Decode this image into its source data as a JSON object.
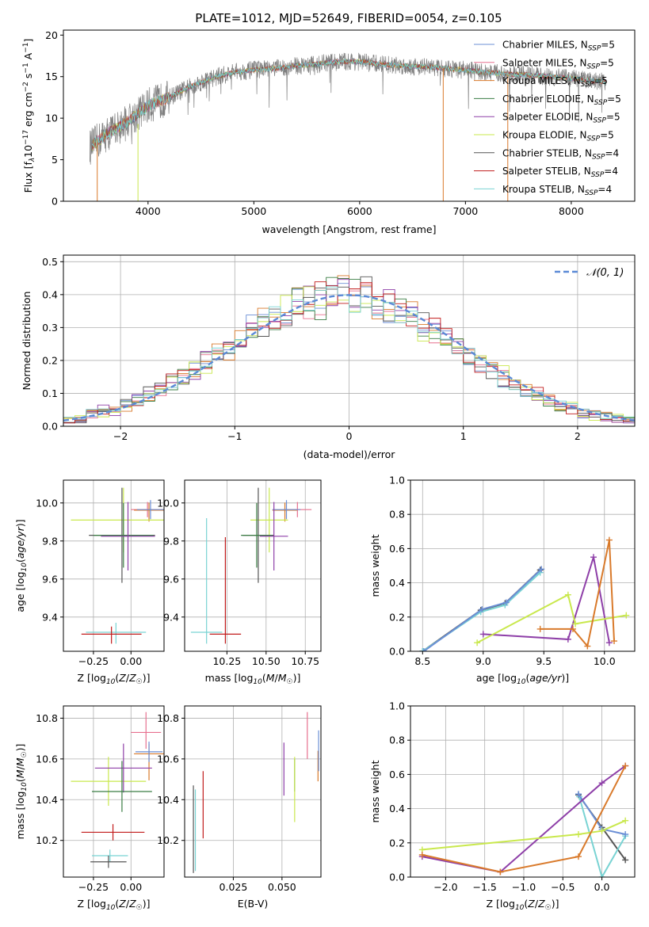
{
  "title": "PLATE=1012, MJD=52649, FIBERID=0054, z=0.105",
  "colors": {
    "chabrier_miles": "#6b8fd6",
    "salpeter_miles": "#e7708f",
    "kroupa_miles": "#d97a2b",
    "chabrier_elodie": "#3a7d44",
    "salpeter_elodie": "#8e3fa8",
    "kroupa_elodie": "#c9e84d",
    "chabrier_stelib": "#555555",
    "salpeter_stelib": "#c11b1b",
    "kroupa_stelib": "#79d3d3",
    "normal_curve": "#5b8ad6"
  },
  "chart_data": [
    {
      "id": "spectrum",
      "type": "line",
      "xlabel": "wavelength [Angstrom, rest frame]",
      "ylabel": "Flux [f_λ 10^-17 erg cm^-2 s^-1 A^-1]",
      "xlim": [
        3200,
        8600
      ],
      "ylim": [
        0,
        20.6
      ],
      "xticks": [
        4000,
        5000,
        6000,
        7000,
        8000
      ],
      "yticks": [
        0,
        5,
        10,
        15,
        20
      ],
      "grid": false,
      "legend_position": "top-right",
      "legend": [
        {
          "label": "Chabrier MILES, N",
          "sub": "SSP",
          "suffix": "=5",
          "color": "#6b8fd6"
        },
        {
          "label": "Salpeter MILES, N",
          "sub": "SSP",
          "suffix": "=5",
          "color": "#e7708f"
        },
        {
          "label": "Kroupa MILES, N",
          "sub": "SSP",
          "suffix": "=5",
          "color": "#d97a2b"
        },
        {
          "label": "Chabrier ELODIE, N",
          "sub": "SSP",
          "suffix": "=5",
          "color": "#3a7d44"
        },
        {
          "label": "Salpeter ELODIE, N",
          "sub": "SSP",
          "suffix": "=5",
          "color": "#8e3fa8"
        },
        {
          "label": "Kroupa ELODIE, N",
          "sub": "SSP",
          "suffix": "=5",
          "color": "#c9e84d"
        },
        {
          "label": "Chabrier STELIB, N",
          "sub": "SSP",
          "suffix": "=4",
          "color": "#555555"
        },
        {
          "label": "Salpeter STELIB, N",
          "sub": "SSP",
          "suffix": "=4",
          "color": "#c11b1b"
        },
        {
          "label": "Kroupa STELIB, N",
          "sub": "SSP",
          "suffix": "=4",
          "color": "#79d3d3"
        }
      ],
      "continuum": [
        [
          3450,
          6.5
        ],
        [
          3600,
          8.0
        ],
        [
          3800,
          9.5
        ],
        [
          4000,
          11.5
        ],
        [
          4200,
          12.5
        ],
        [
          4400,
          13.8
        ],
        [
          4600,
          14.8
        ],
        [
          4800,
          15.5
        ],
        [
          5000,
          15.8
        ],
        [
          5200,
          16.0
        ],
        [
          5400,
          16.3
        ],
        [
          5600,
          16.5
        ],
        [
          5800,
          16.8
        ],
        [
          6000,
          16.8
        ],
        [
          6200,
          16.5
        ],
        [
          6400,
          16.3
        ],
        [
          6600,
          16.2
        ],
        [
          6800,
          16.0
        ],
        [
          7000,
          15.8
        ],
        [
          7200,
          15.5
        ],
        [
          7400,
          15.3
        ],
        [
          7600,
          15.2
        ],
        [
          7800,
          15.0
        ],
        [
          8000,
          14.8
        ],
        [
          8200,
          14.5
        ],
        [
          8330,
          14.4
        ]
      ],
      "model_drops": [
        {
          "x": 3520,
          "y_from": 7.5,
          "y_to": 0,
          "color": "#d97a2b"
        },
        {
          "x": 3905,
          "y_from": 9.3,
          "y_to": 0,
          "color": "#c9e84d"
        },
        {
          "x": 6790,
          "y_from": 16.0,
          "y_to": 0,
          "color": "#d97a2b"
        },
        {
          "x": 7400,
          "y_from": 15.3,
          "y_to": 0,
          "color": "#d97a2b"
        }
      ]
    },
    {
      "id": "residual-histogram",
      "type": "histogram",
      "xlabel": "(data-model)/error",
      "ylabel": "Normed distribution",
      "xlim": [
        -2.5,
        2.5
      ],
      "ylim": [
        0,
        0.52
      ],
      "xticks": [
        -2,
        -1,
        0,
        1,
        2
      ],
      "yticks": [
        0.0,
        0.1,
        0.2,
        0.3,
        0.4,
        0.5
      ],
      "grid": true,
      "legend_position": "top-right",
      "legend": [
        {
          "label": "𝒩(0, 1)",
          "color": "#5b8ad6",
          "style": "dashed"
        }
      ],
      "bin_width": 0.1,
      "bin_start": -2.5
    },
    {
      "id": "age-vs-Z",
      "type": "errorbar",
      "xlabel": "Z [log10(Z/Z☉)]",
      "ylabel": "age  [log10(age/yr)]",
      "xlim": [
        -0.45,
        0.22
      ],
      "ylim": [
        9.22,
        10.12
      ],
      "xticks": [
        -0.25,
        0.0
      ],
      "xticklabels": [
        "−0.25",
        "0.00"
      ],
      "yticks": [
        9.4,
        9.6,
        9.8,
        10.0
      ],
      "grid": true,
      "points": [
        {
          "x": 0.11,
          "y": 9.965,
          "xerr": 0.11,
          "yerr": [
            0.04,
            0.04
          ],
          "color": "#e7708f"
        },
        {
          "x": 0.12,
          "y": 9.962,
          "xerr": 0.1,
          "yerr": [
            0.06,
            0.04
          ],
          "color": "#d97a2b"
        },
        {
          "x": 0.13,
          "y": 9.965,
          "xerr": 0.09,
          "yerr": [
            0.05,
            0.05
          ],
          "color": "#6b8fd6"
        },
        {
          "x": -0.05,
          "y": 9.91,
          "xerr": 0.35,
          "yerr": [
            0.17,
            0.17
          ],
          "color": "#c9e84d"
        },
        {
          "x": -0.06,
          "y": 9.83,
          "xerr": 0.22,
          "yerr": [
            0.25,
            0.25
          ],
          "color": "#555555"
        },
        {
          "x": -0.05,
          "y": 9.83,
          "xerr": 0.2,
          "yerr": [
            0.17,
            0.17
          ],
          "color": "#3a7d44"
        },
        {
          "x": -0.02,
          "y": 9.825,
          "xerr": 0.18,
          "yerr": [
            0.18,
            0.18
          ],
          "color": "#8e3fa8"
        },
        {
          "x": -0.1,
          "y": 9.32,
          "xerr": 0.2,
          "yerr": [
            0.06,
            0.05
          ],
          "color": "#79d3d3"
        },
        {
          "x": -0.13,
          "y": 9.31,
          "xerr": 0.2,
          "yerr": [
            0.05,
            0.04
          ],
          "color": "#c11b1b"
        }
      ]
    },
    {
      "id": "age-vs-mass",
      "type": "errorbar",
      "xlabel": "mass [log10(M/M☉)]",
      "ylabel": "",
      "xlim": [
        9.98,
        10.85
      ],
      "ylim": [
        9.22,
        10.12
      ],
      "xticks": [
        10.25,
        10.5,
        10.75
      ],
      "xticklabels": [
        "10.25",
        "10.50",
        "10.75"
      ],
      "yticks": [
        9.4,
        9.6,
        9.8,
        10.0
      ],
      "grid": true,
      "points": [
        {
          "x": 10.7,
          "y": 9.965,
          "xerr": 0.09,
          "yerr": [
            0.04,
            0.04
          ],
          "color": "#e7708f"
        },
        {
          "x": 10.62,
          "y": 9.962,
          "xerr": 0.08,
          "yerr": [
            0.06,
            0.04
          ],
          "color": "#d97a2b"
        },
        {
          "x": 10.63,
          "y": 9.965,
          "xerr": 0.09,
          "yerr": [
            0.05,
            0.05
          ],
          "color": "#6b8fd6"
        },
        {
          "x": 10.52,
          "y": 9.91,
          "xerr": 0.12,
          "yerr": [
            0.17,
            0.17
          ],
          "color": "#c9e84d"
        },
        {
          "x": 10.45,
          "y": 9.83,
          "xerr": 0.1,
          "yerr": [
            0.25,
            0.25
          ],
          "color": "#555555"
        },
        {
          "x": 10.44,
          "y": 9.83,
          "xerr": 0.1,
          "yerr": [
            0.17,
            0.17
          ],
          "color": "#3a7d44"
        },
        {
          "x": 10.55,
          "y": 9.825,
          "xerr": 0.09,
          "yerr": [
            0.18,
            0.18
          ],
          "color": "#8e3fa8"
        },
        {
          "x": 10.12,
          "y": 9.32,
          "xerr": 0.1,
          "yerr": [
            0.06,
            0.6
          ],
          "color": "#79d3d3"
        },
        {
          "x": 10.24,
          "y": 9.31,
          "xerr": 0.1,
          "yerr": [
            0.05,
            0.51
          ],
          "color": "#c11b1b"
        }
      ]
    },
    {
      "id": "mass-weight-vs-age",
      "type": "line",
      "xlabel": "age  [log10(age/yr)]",
      "ylabel": "mass weight",
      "xlim": [
        8.4,
        10.25
      ],
      "ylim": [
        0,
        1.0
      ],
      "xticks": [
        8.5,
        9.0,
        9.5,
        10.0
      ],
      "xticklabels": [
        "8.5",
        "9.0",
        "9.5",
        "10.0"
      ],
      "yticks": [
        0.0,
        0.2,
        0.4,
        0.6,
        0.8,
        1.0
      ],
      "grid": true,
      "series": [
        {
          "color": "#555555",
          "x": [
            8.5,
            8.98,
            9.18,
            9.47
          ],
          "y": [
            0.0,
            0.24,
            0.28,
            0.475
          ]
        },
        {
          "color": "#79d3d3",
          "x": [
            8.5,
            8.98,
            9.18,
            9.47
          ],
          "y": [
            0.0,
            0.23,
            0.27,
            0.46
          ]
        },
        {
          "color": "#6b8fd6",
          "x": [
            8.51,
            8.99,
            9.19,
            9.48
          ],
          "y": [
            0.0,
            0.245,
            0.285,
            0.48
          ]
        },
        {
          "color": "#8e3fa8",
          "x": [
            9.0,
            9.7,
            9.91,
            10.04
          ],
          "y": [
            0.1,
            0.07,
            0.55,
            0.05
          ]
        },
        {
          "color": "#c9e84d",
          "x": [
            8.95,
            9.7,
            9.76,
            10.18
          ],
          "y": [
            0.05,
            0.33,
            0.16,
            0.21
          ]
        },
        {
          "color": "#d97a2b",
          "x": [
            9.47,
            9.74,
            9.86,
            10.04,
            10.08
          ],
          "y": [
            0.13,
            0.13,
            0.03,
            0.65,
            0.06
          ]
        }
      ]
    },
    {
      "id": "mass-vs-Z",
      "type": "errorbar",
      "xlabel": "Z [log10(Z/Z☉)]",
      "ylabel": "mass [log10(M/M☉)]",
      "xlim": [
        -0.45,
        0.22
      ],
      "ylim": [
        10.02,
        10.86
      ],
      "xticks": [
        -0.25,
        0.0
      ],
      "xticklabels": [
        "−0.25",
        "0.00"
      ],
      "yticks": [
        10.2,
        10.4,
        10.6,
        10.8
      ],
      "grid": true,
      "points": [
        {
          "x": 0.1,
          "y": 10.73,
          "xerr": 0.1,
          "yerr": [
            0.08,
            0.1
          ],
          "color": "#e7708f"
        },
        {
          "x": 0.12,
          "y": 10.625,
          "xerr": 0.1,
          "yerr": [
            0.13,
            0.05
          ],
          "color": "#d97a2b"
        },
        {
          "x": 0.12,
          "y": 10.635,
          "xerr": 0.09,
          "yerr": [
            0.05,
            0.05
          ],
          "color": "#6b8fd6"
        },
        {
          "x": -0.15,
          "y": 10.49,
          "xerr": 0.25,
          "yerr": [
            0.12,
            0.12
          ],
          "color": "#c9e84d"
        },
        {
          "x": -0.05,
          "y": 10.555,
          "xerr": 0.19,
          "yerr": [
            0.12,
            0.12
          ],
          "color": "#8e3fa8"
        },
        {
          "x": -0.06,
          "y": 10.44,
          "xerr": 0.2,
          "yerr": [
            0.1,
            0.15
          ],
          "color": "#3a7d44"
        },
        {
          "x": -0.12,
          "y": 10.24,
          "xerr": 0.21,
          "yerr": [
            0.04,
            0.04
          ],
          "color": "#c11b1b"
        },
        {
          "x": -0.14,
          "y": 10.125,
          "xerr": 0.12,
          "yerr": [
            0.03,
            0.03
          ],
          "color": "#79d3d3"
        },
        {
          "x": -0.15,
          "y": 10.095,
          "xerr": 0.12,
          "yerr": [
            0.03,
            0.03
          ],
          "color": "#555555"
        }
      ]
    },
    {
      "id": "mass-vs-EBV",
      "type": "errorbar",
      "xlabel": "E(B-V)",
      "ylabel": "",
      "xlim": [
        0.0,
        0.07
      ],
      "ylim": [
        10.02,
        10.86
      ],
      "xticks": [
        0.025,
        0.05
      ],
      "xticklabels": [
        "0.025",
        "0.050"
      ],
      "yticks": [
        10.2,
        10.4,
        10.6,
        10.8
      ],
      "grid": true,
      "points": [
        {
          "x": 0.0045,
          "y": 10.3,
          "yerr": [
            0.26,
            0.17
          ],
          "color": "#555555"
        },
        {
          "x": 0.0055,
          "y": 10.25,
          "yerr": [
            0.2,
            0.2
          ],
          "color": "#79d3d3"
        },
        {
          "x": 0.0095,
          "y": 10.37,
          "yerr": [
            0.16,
            0.17
          ],
          "color": "#c11b1b"
        },
        {
          "x": 0.051,
          "y": 10.55,
          "yerr": [
            0.13,
            0.13
          ],
          "color": "#8e3fa8"
        },
        {
          "x": 0.0565,
          "y": 10.52,
          "yerr": [
            0.08,
            0.08
          ],
          "color": "#3a7d44"
        },
        {
          "x": 0.0565,
          "y": 10.45,
          "yerr": [
            0.16,
            0.16
          ],
          "color": "#c9e84d"
        },
        {
          "x": 0.063,
          "y": 10.71,
          "yerr": [
            0.11,
            0.12
          ],
          "color": "#e7708f"
        },
        {
          "x": 0.0685,
          "y": 10.56,
          "yerr": [
            0.07,
            0.08
          ],
          "color": "#d97a2b"
        },
        {
          "x": 0.0688,
          "y": 10.64,
          "yerr": [
            0.1,
            0.1
          ],
          "color": "#6b8fd6"
        }
      ]
    },
    {
      "id": "mass-weight-vs-Z",
      "type": "line",
      "xlabel": "Z [log10(Z/Z☉)]",
      "ylabel": "mass weight",
      "xlim": [
        -2.45,
        0.42
      ],
      "ylim": [
        0,
        1.0
      ],
      "xticks": [
        -2.0,
        -1.5,
        -1.0,
        -0.5,
        0.0
      ],
      "xticklabels": [
        "−2.0",
        "−1.5",
        "−1.0",
        "−0.5",
        "0.0"
      ],
      "yticks": [
        0.0,
        0.2,
        0.4,
        0.6,
        0.8,
        1.0
      ],
      "grid": true,
      "series": [
        {
          "color": "#555555",
          "x": [
            -0.3,
            0.0,
            0.3
          ],
          "y": [
            0.48,
            0.29,
            0.1
          ]
        },
        {
          "color": "#79d3d3",
          "x": [
            -0.29,
            0.0,
            0.3
          ],
          "y": [
            0.47,
            0.0,
            0.24
          ]
        },
        {
          "color": "#6b8fd6",
          "x": [
            -0.3,
            0.0,
            0.3
          ],
          "y": [
            0.485,
            0.28,
            0.25
          ]
        },
        {
          "color": "#8e3fa8",
          "x": [
            -2.3,
            -1.3,
            0.0,
            0.3
          ],
          "y": [
            0.12,
            0.03,
            0.55,
            0.65
          ]
        },
        {
          "color": "#c9e84d",
          "x": [
            -2.3,
            -0.3,
            0.0,
            0.3
          ],
          "y": [
            0.16,
            0.25,
            0.27,
            0.33
          ]
        },
        {
          "color": "#d97a2b",
          "x": [
            -2.3,
            -1.3,
            -0.3,
            0.3
          ],
          "y": [
            0.13,
            0.03,
            0.12,
            0.65
          ]
        }
      ]
    }
  ]
}
